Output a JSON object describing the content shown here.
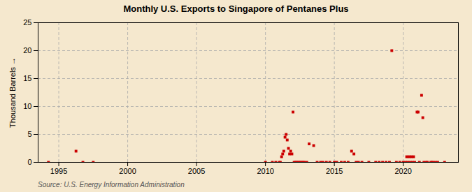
{
  "chart_data": {
    "type": "scatter",
    "title": "Monthly U.S. Exports to Singapore of Pentanes Plus",
    "ylabel": "Thousand Barrels",
    "source": "Source: U.S. Energy Information Administration",
    "color": "#cc0000",
    "marker": "square",
    "grid": true,
    "xlim": [
      1993.5,
      2024.0
    ],
    "ylim": [
      0,
      25
    ],
    "xticks": [
      1995,
      2000,
      2005,
      2010,
      2015,
      2020
    ],
    "yticks": [
      0,
      5,
      10,
      15,
      20,
      25
    ],
    "x": [
      1994.25,
      1996.25,
      1996.75,
      1997.5,
      2010.0,
      2010.5,
      2010.75,
      2011.0,
      2011.08,
      2011.17,
      2011.25,
      2011.33,
      2011.42,
      2011.5,
      2011.58,
      2011.67,
      2011.75,
      2011.83,
      2011.92,
      2012.0,
      2012.08,
      2012.17,
      2012.25,
      2012.33,
      2012.42,
      2012.5,
      2012.58,
      2012.67,
      2012.75,
      2012.83,
      2013.0,
      2013.17,
      2013.5,
      2013.75,
      2014.0,
      2014.17,
      2014.42,
      2014.67,
      2015.0,
      2015.17,
      2015.5,
      2015.75,
      2016.0,
      2016.25,
      2016.42,
      2016.58,
      2016.75,
      2017.0,
      2017.5,
      2018.0,
      2018.25,
      2018.5,
      2018.75,
      2019.0,
      2019.17,
      2019.5,
      2019.75,
      2020.0,
      2020.17,
      2020.25,
      2020.33,
      2020.42,
      2020.5,
      2020.58,
      2020.67,
      2020.75,
      2020.83,
      2021.0,
      2021.08,
      2021.17,
      2021.33,
      2021.42,
      2021.5,
      2021.67,
      2021.75,
      2022.0,
      2022.08,
      2022.17,
      2022.33,
      2022.5,
      2023.0
    ],
    "values": [
      0.0,
      2.0,
      0.0,
      0.0,
      0.0,
      0.0,
      0.0,
      0.0,
      0.0,
      1.0,
      1.5,
      2.0,
      4.5,
      5.0,
      4.0,
      2.5,
      1.5,
      2.0,
      1.5,
      9.0,
      0.0,
      0.0,
      0.0,
      0.0,
      0.0,
      0.0,
      0.0,
      0.0,
      0.0,
      0.0,
      0.0,
      3.3,
      3.0,
      0.0,
      0.0,
      0.0,
      0.0,
      0.0,
      0.0,
      0.0,
      0.0,
      0.0,
      0.0,
      2.0,
      1.5,
      0.0,
      0.0,
      0.0,
      0.0,
      0.0,
      0.0,
      0.0,
      0.0,
      0.0,
      20.0,
      0.0,
      0.0,
      0.0,
      0.0,
      1.0,
      0.0,
      1.0,
      0.0,
      1.0,
      0.0,
      1.0,
      0.0,
      9.0,
      9.0,
      0.0,
      12.0,
      8.0,
      0.0,
      0.0,
      0.0,
      0.0,
      0.0,
      0.0,
      0.0,
      0.0,
      0.0
    ]
  }
}
